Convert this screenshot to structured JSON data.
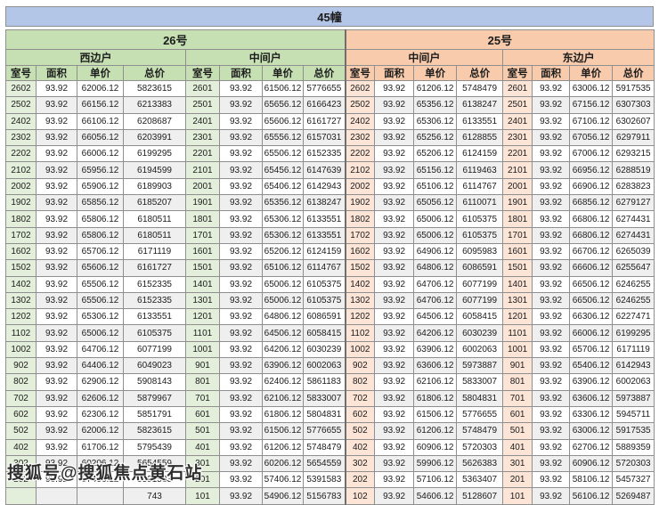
{
  "title": "45幢",
  "watermark": "搜狐号@搜狐焦点黄石站",
  "buildings": [
    {
      "label": "26号",
      "header_color": "#c6e0b4",
      "room_color": "#e3efda",
      "units": [
        "西边户",
        "中间户"
      ]
    },
    {
      "label": "25号",
      "header_color": "#f8cbad",
      "room_color": "#fce4d6",
      "units": [
        "中间户",
        "东边户"
      ]
    }
  ],
  "column_headers": [
    "室号",
    "面积",
    "单价",
    "总价"
  ],
  "title_color": "#b4c6e7",
  "rows": [
    [
      "2602",
      "93.92",
      "62006.12",
      "5823615",
      "2601",
      "93.92",
      "61506.12",
      "5776655",
      "2602",
      "93.92",
      "61206.12",
      "5748479",
      "2601",
      "93.92",
      "63006.12",
      "5917535"
    ],
    [
      "2502",
      "93.92",
      "66156.12",
      "6213383",
      "2501",
      "93.92",
      "65656.12",
      "6166423",
      "2502",
      "93.92",
      "65356.12",
      "6138247",
      "2501",
      "93.92",
      "67156.12",
      "6307303"
    ],
    [
      "2402",
      "93.92",
      "66106.12",
      "6208687",
      "2401",
      "93.92",
      "65606.12",
      "6161727",
      "2402",
      "93.92",
      "65306.12",
      "6133551",
      "2401",
      "93.92",
      "67106.12",
      "6302607"
    ],
    [
      "2302",
      "93.92",
      "66056.12",
      "6203991",
      "2301",
      "93.92",
      "65556.12",
      "6157031",
      "2302",
      "93.92",
      "65256.12",
      "6128855",
      "2301",
      "93.92",
      "67056.12",
      "6297911"
    ],
    [
      "2202",
      "93.92",
      "66006.12",
      "6199295",
      "2201",
      "93.92",
      "65506.12",
      "6152335",
      "2202",
      "93.92",
      "65206.12",
      "6124159",
      "2201",
      "93.92",
      "67006.12",
      "6293215"
    ],
    [
      "2102",
      "93.92",
      "65956.12",
      "6194599",
      "2101",
      "93.92",
      "65456.12",
      "6147639",
      "2102",
      "93.92",
      "65156.12",
      "6119463",
      "2101",
      "93.92",
      "66956.12",
      "6288519"
    ],
    [
      "2002",
      "93.92",
      "65906.12",
      "6189903",
      "2001",
      "93.92",
      "65406.12",
      "6142943",
      "2002",
      "93.92",
      "65106.12",
      "6114767",
      "2001",
      "93.92",
      "66906.12",
      "6283823"
    ],
    [
      "1902",
      "93.92",
      "65856.12",
      "6185207",
      "1901",
      "93.92",
      "65356.12",
      "6138247",
      "1902",
      "93.92",
      "65056.12",
      "6110071",
      "1901",
      "93.92",
      "66856.12",
      "6279127"
    ],
    [
      "1802",
      "93.92",
      "65806.12",
      "6180511",
      "1801",
      "93.92",
      "65306.12",
      "6133551",
      "1802",
      "93.92",
      "65006.12",
      "6105375",
      "1801",
      "93.92",
      "66806.12",
      "6274431"
    ],
    [
      "1702",
      "93.92",
      "65806.12",
      "6180511",
      "1701",
      "93.92",
      "65306.12",
      "6133551",
      "1702",
      "93.92",
      "65006.12",
      "6105375",
      "1701",
      "93.92",
      "66806.12",
      "6274431"
    ],
    [
      "1602",
      "93.92",
      "65706.12",
      "6171119",
      "1601",
      "93.92",
      "65206.12",
      "6124159",
      "1602",
      "93.92",
      "64906.12",
      "6095983",
      "1601",
      "93.92",
      "66706.12",
      "6265039"
    ],
    [
      "1502",
      "93.92",
      "65606.12",
      "6161727",
      "1501",
      "93.92",
      "65106.12",
      "6114767",
      "1502",
      "93.92",
      "64806.12",
      "6086591",
      "1501",
      "93.92",
      "66606.12",
      "6255647"
    ],
    [
      "1402",
      "93.92",
      "65506.12",
      "6152335",
      "1401",
      "93.92",
      "65006.12",
      "6105375",
      "1402",
      "93.92",
      "64706.12",
      "6077199",
      "1401",
      "93.92",
      "66506.12",
      "6246255"
    ],
    [
      "1302",
      "93.92",
      "65506.12",
      "6152335",
      "1301",
      "93.92",
      "65006.12",
      "6105375",
      "1302",
      "93.92",
      "64706.12",
      "6077199",
      "1301",
      "93.92",
      "66506.12",
      "6246255"
    ],
    [
      "1202",
      "93.92",
      "65306.12",
      "6133551",
      "1201",
      "93.92",
      "64806.12",
      "6086591",
      "1202",
      "93.92",
      "64506.12",
      "6058415",
      "1201",
      "93.92",
      "66306.12",
      "6227471"
    ],
    [
      "1102",
      "93.92",
      "65006.12",
      "6105375",
      "1101",
      "93.92",
      "64506.12",
      "6058415",
      "1102",
      "93.92",
      "64206.12",
      "6030239",
      "1101",
      "93.92",
      "66006.12",
      "6199295"
    ],
    [
      "1002",
      "93.92",
      "64706.12",
      "6077199",
      "1001",
      "93.92",
      "64206.12",
      "6030239",
      "1002",
      "93.92",
      "63906.12",
      "6002063",
      "1001",
      "93.92",
      "65706.12",
      "6171119"
    ],
    [
      "902",
      "93.92",
      "64406.12",
      "6049023",
      "901",
      "93.92",
      "63906.12",
      "6002063",
      "902",
      "93.92",
      "63606.12",
      "5973887",
      "901",
      "93.92",
      "65406.12",
      "6142943"
    ],
    [
      "802",
      "93.92",
      "62906.12",
      "5908143",
      "801",
      "93.92",
      "62406.12",
      "5861183",
      "802",
      "93.92",
      "62106.12",
      "5833007",
      "801",
      "93.92",
      "63906.12",
      "6002063"
    ],
    [
      "702",
      "93.92",
      "62606.12",
      "5879967",
      "701",
      "93.92",
      "62106.12",
      "5833007",
      "702",
      "93.92",
      "61806.12",
      "5804831",
      "701",
      "93.92",
      "63606.12",
      "5973887"
    ],
    [
      "602",
      "93.92",
      "62306.12",
      "5851791",
      "601",
      "93.92",
      "61806.12",
      "5804831",
      "602",
      "93.92",
      "61506.12",
      "5776655",
      "601",
      "93.92",
      "63306.12",
      "5945711"
    ],
    [
      "502",
      "93.92",
      "62006.12",
      "5823615",
      "501",
      "93.92",
      "61506.12",
      "5776655",
      "502",
      "93.92",
      "61206.12",
      "5748479",
      "501",
      "93.92",
      "63006.12",
      "5917535"
    ],
    [
      "402",
      "93.92",
      "61706.12",
      "5795439",
      "401",
      "93.92",
      "61206.12",
      "5748479",
      "402",
      "93.92",
      "60906.12",
      "5720303",
      "401",
      "93.92",
      "62706.12",
      "5889359"
    ],
    [
      "302",
      "93.92",
      "60206.12",
      "5654559",
      "301",
      "93.92",
      "60206.12",
      "5654559",
      "302",
      "93.92",
      "59906.12",
      "5626383",
      "301",
      "93.92",
      "60906.12",
      "5720303"
    ],
    [
      "202",
      "93.92",
      "57406.12",
      "5391583",
      "201",
      "93.92",
      "57406.12",
      "5391583",
      "202",
      "93.92",
      "57106.12",
      "5363407",
      "201",
      "93.92",
      "58106.12",
      "5457327"
    ],
    [
      "",
      "",
      "",
      "743",
      "101",
      "93.92",
      "54906.12",
      "5156783",
      "102",
      "93.92",
      "54606.12",
      "5128607",
      "101",
      "93.92",
      "56106.12",
      "5269487"
    ]
  ]
}
